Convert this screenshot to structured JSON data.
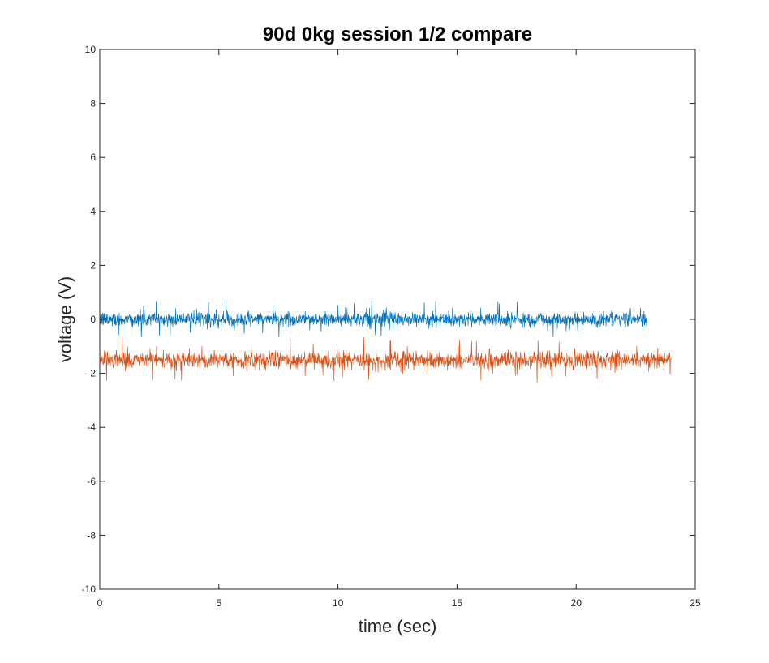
{
  "chart_data": {
    "type": "line",
    "title": "90d 0kg session 1/2 compare",
    "xlabel": "time (sec)",
    "ylabel": "voltage (V)",
    "xlim": [
      0,
      25
    ],
    "ylim": [
      -10,
      10
    ],
    "x_ticks": [
      0,
      5,
      10,
      15,
      20,
      25
    ],
    "y_ticks": [
      -10,
      -8,
      -6,
      -4,
      -2,
      0,
      2,
      4,
      6,
      8,
      10
    ],
    "x_tick_labels": [
      "0",
      "5",
      "10",
      "15",
      "20",
      "25"
    ],
    "y_tick_labels": [
      "-10",
      "-8",
      "-6",
      "-4",
      "-2",
      "0",
      "2",
      "4",
      "6",
      "8",
      "10"
    ],
    "grid": false,
    "legend": false,
    "series": [
      {
        "color": "#0072BD",
        "x_range": [
          0,
          23
        ],
        "mean": 0.0,
        "typical_spread": 0.25,
        "max_spike": 0.85,
        "min_spike": -0.65
      },
      {
        "color": "#D95319",
        "x_range": [
          0,
          24
        ],
        "mean": -1.5,
        "typical_spread": 0.3,
        "max_spike": -0.65,
        "min_spike": -2.5
      }
    ]
  }
}
